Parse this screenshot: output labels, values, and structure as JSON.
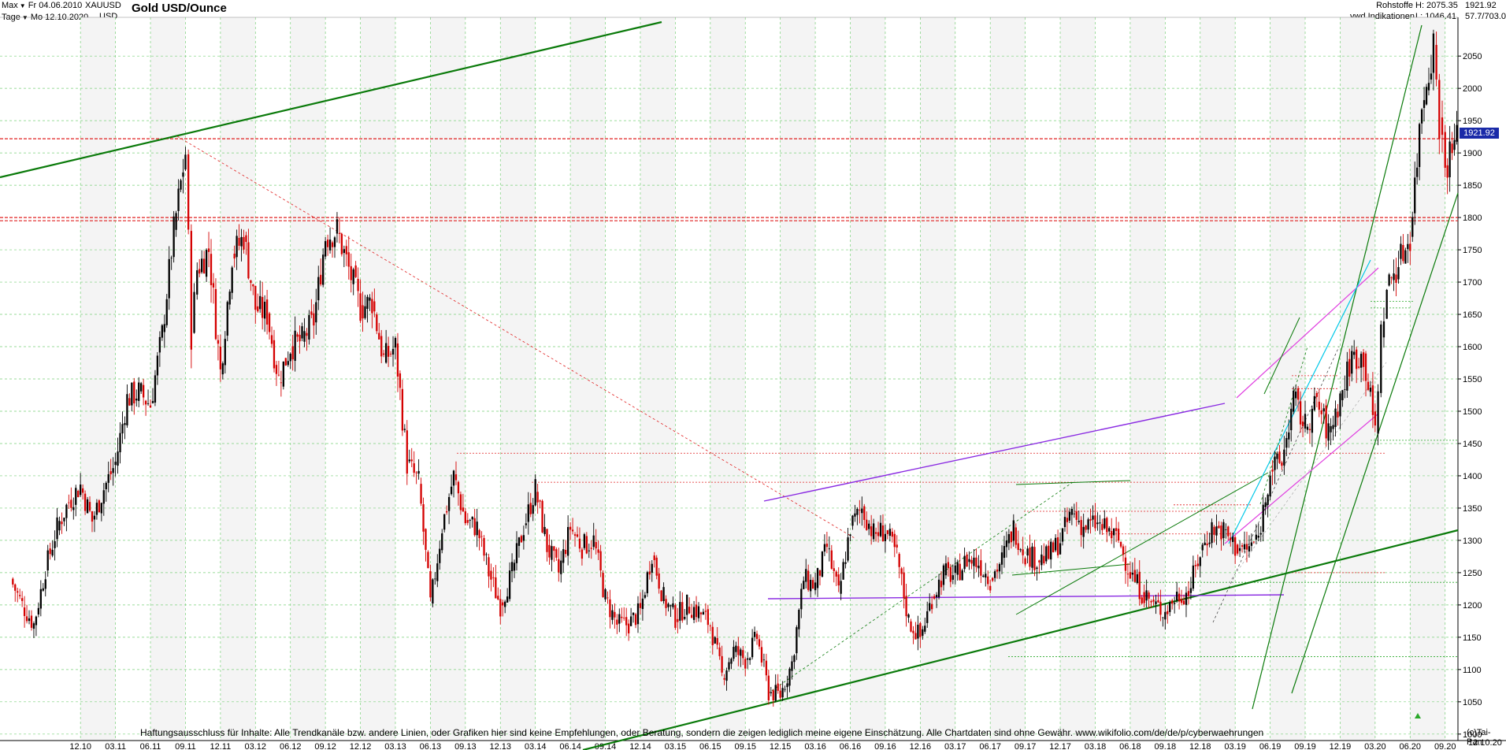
{
  "header": {
    "range_label": "Max",
    "interval_label": "Tage",
    "from_date": "Fr 04.06.2010",
    "to_date": "Mo 12.10.2020",
    "symbol": "XAUUSD",
    "currency": "USD",
    "title": "Gold USD/Ounce",
    "category": "Rohstoffe",
    "source": "vwd Indikationen",
    "high_label": "H: 2075.35",
    "low_label": "L: 1046.41",
    "last_price": "1921.92",
    "ratio": "57.7/703.0"
  },
  "footer": {
    "disclaimer": "Haftungsausschluss für Inhalte: Alle Trendkanäle bzw. andere Linien, oder Grafiken hier sind keine Empfehlungen, oder Beratung, sondern die zeigen lediglich meine eigene Einschätzung. Alle Chartdaten sind ohne Gewähr.  www.wikifolio.com/de/de/p/cyberwaehrungen",
    "copyright": "(c)Tai-Pan",
    "last_date": "12.10.20"
  },
  "current_price_tag": "1921.92",
  "colors": {
    "up_candle": "#000000",
    "down_candle": "#d40000",
    "grid": "#7ad07a",
    "resistance": "#e02020",
    "trend_green": "#0a7a0a",
    "trend_purple": "#8a2be2",
    "trend_magenta": "#e040e0",
    "trend_cyan": "#00c8e8",
    "price_box": "#1a2aa8"
  },
  "chart_data": {
    "type": "candlestick",
    "title": "Gold USD/Ounce",
    "x_ticks": [
      "12.10",
      "03.11",
      "06.11",
      "09.11",
      "12.11",
      "03.12",
      "06.12",
      "09.12",
      "12.12",
      "03.13",
      "06.13",
      "09.13",
      "12.13",
      "03.14",
      "06.14",
      "09.14",
      "12.14",
      "03.15",
      "06.15",
      "09.15",
      "12.15",
      "03.16",
      "06.16",
      "09.16",
      "12.16",
      "03.17",
      "06.17",
      "09.17",
      "12.17",
      "03.18",
      "06.18",
      "09.18",
      "12.18",
      "03.19",
      "06.19",
      "09.19",
      "12.19",
      "03.20",
      "06.20",
      "09.20"
    ],
    "y_ticks": [
      1000,
      1050,
      1100,
      1150,
      1200,
      1250,
      1300,
      1350,
      1400,
      1450,
      1500,
      1550,
      1600,
      1650,
      1700,
      1750,
      1800,
      1850,
      1900,
      1950,
      2000,
      2050
    ],
    "ylim": [
      990,
      2110
    ],
    "y_axis_side": "right",
    "grid": true,
    "high": 2075.35,
    "low": 1046.41,
    "last": 1921.92,
    "price_path": [
      [
        "06.10",
        1240
      ],
      [
        "07.10",
        1200
      ],
      [
        "08.10",
        1170
      ],
      [
        "09.10",
        1255
      ],
      [
        "10.10",
        1320
      ],
      [
        "11.10",
        1360
      ],
      [
        "12.10",
        1385
      ],
      [
        "01.11",
        1330
      ],
      [
        "02.11",
        1380
      ],
      [
        "03.11",
        1420
      ],
      [
        "04.11",
        1520
      ],
      [
        "05.11",
        1530
      ],
      [
        "06.11",
        1510
      ],
      [
        "07.11",
        1620
      ],
      [
        "08.11",
        1780
      ],
      [
        "09.11",
        1900
      ],
      [
        "09.11",
        1620
      ],
      [
        "10.11",
        1720
      ],
      [
        "11.11",
        1750
      ],
      [
        "12.11",
        1560
      ],
      [
        "01.12",
        1740
      ],
      [
        "02.12",
        1770
      ],
      [
        "03.12",
        1660
      ],
      [
        "04.12",
        1650
      ],
      [
        "05.12",
        1550
      ],
      [
        "06.12",
        1600
      ],
      [
        "07.12",
        1610
      ],
      [
        "08.12",
        1640
      ],
      [
        "09.12",
        1770
      ],
      [
        "10.12",
        1780
      ],
      [
        "11.12",
        1720
      ],
      [
        "12.12",
        1660
      ],
      [
        "01.13",
        1670
      ],
      [
        "02.13",
        1580
      ],
      [
        "03.13",
        1600
      ],
      [
        "04.13",
        1420
      ],
      [
        "05.13",
        1390
      ],
      [
        "06.13",
        1200
      ],
      [
        "07.13",
        1320
      ],
      [
        "08.13",
        1400
      ],
      [
        "09.13",
        1330
      ],
      [
        "10.13",
        1320
      ],
      [
        "11.13",
        1250
      ],
      [
        "12.13",
        1200
      ],
      [
        "01.14",
        1250
      ],
      [
        "02.14",
        1320
      ],
      [
        "03.14",
        1380
      ],
      [
        "04.14",
        1290
      ],
      [
        "05.14",
        1250
      ],
      [
        "06.14",
        1320
      ],
      [
        "07.14",
        1290
      ],
      [
        "08.14",
        1300
      ],
      [
        "09.14",
        1210
      ],
      [
        "10.14",
        1170
      ],
      [
        "11.14",
        1170
      ],
      [
        "12.14",
        1190
      ],
      [
        "01.15",
        1280
      ],
      [
        "02.15",
        1210
      ],
      [
        "03.15",
        1180
      ],
      [
        "04.15",
        1200
      ],
      [
        "05.15",
        1190
      ],
      [
        "06.15",
        1170
      ],
      [
        "07.15",
        1090
      ],
      [
        "08.15",
        1130
      ],
      [
        "09.15",
        1115
      ],
      [
        "10.15",
        1150
      ],
      [
        "11.15",
        1065
      ],
      [
        "12.15",
        1060
      ],
      [
        "01.16",
        1110
      ],
      [
        "02.16",
        1240
      ],
      [
        "03.16",
        1230
      ],
      [
        "04.16",
        1290
      ],
      [
        "05.16",
        1215
      ],
      [
        "06.16",
        1320
      ],
      [
        "07.16",
        1350
      ],
      [
        "08.16",
        1310
      ],
      [
        "09.16",
        1315
      ],
      [
        "10.16",
        1275
      ],
      [
        "11.16",
        1175
      ],
      [
        "12.16",
        1150
      ],
      [
        "01.17",
        1210
      ],
      [
        "02.17",
        1250
      ],
      [
        "03.17",
        1245
      ],
      [
        "04.17",
        1270
      ],
      [
        "05.17",
        1265
      ],
      [
        "06.17",
        1240
      ],
      [
        "07.17",
        1270
      ],
      [
        "08.17",
        1320
      ],
      [
        "09.17",
        1280
      ],
      [
        "10.17",
        1270
      ],
      [
        "11.17",
        1275
      ],
      [
        "12.17",
        1300
      ],
      [
        "01.18",
        1345
      ],
      [
        "02.18",
        1320
      ],
      [
        "03.18",
        1325
      ],
      [
        "04.18",
        1315
      ],
      [
        "05.18",
        1300
      ],
      [
        "06.18",
        1250
      ],
      [
        "07.18",
        1220
      ],
      [
        "08.18",
        1200
      ],
      [
        "09.18",
        1190
      ],
      [
        "10.18",
        1215
      ],
      [
        "11.18",
        1220
      ],
      [
        "12.18",
        1280
      ],
      [
        "01.19",
        1320
      ],
      [
        "02.19",
        1315
      ],
      [
        "03.19",
        1290
      ],
      [
        "04.19",
        1285
      ],
      [
        "05.19",
        1305
      ],
      [
        "06.19",
        1410
      ],
      [
        "07.19",
        1420
      ],
      [
        "08.19",
        1520
      ],
      [
        "09.19",
        1475
      ],
      [
        "10.19",
        1515
      ],
      [
        "11.19",
        1465
      ],
      [
        "12.19",
        1520
      ],
      [
        "01.20",
        1585
      ],
      [
        "02.20",
        1585
      ],
      [
        "03.20",
        1470
      ],
      [
        "03.20",
        1620
      ],
      [
        "04.20",
        1690
      ],
      [
        "05.20",
        1730
      ],
      [
        "06.20",
        1770
      ],
      [
        "07.20",
        1975
      ],
      [
        "08.20",
        2070
      ],
      [
        "08.20",
        1950
      ],
      [
        "09.20",
        1880
      ],
      [
        "10.20",
        1921.92
      ]
    ]
  },
  "levels": {
    "resistance_lines": [
      1921.92,
      1800,
      1795
    ],
    "minor_levels": [
      1435,
      1390,
      1355,
      1345,
      1310,
      1250,
      1235,
      1120,
      1455,
      1660,
      1670,
      1555,
      1535
    ]
  }
}
